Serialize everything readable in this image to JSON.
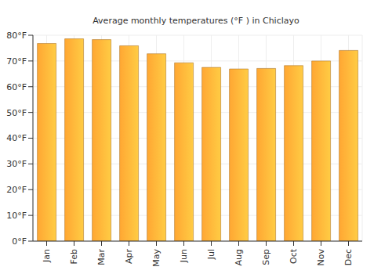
{
  "chart_data": {
    "type": "bar",
    "title": "Average monthly temperatures (°F ) in Chiclayo",
    "categories": [
      "Jan",
      "Feb",
      "Mar",
      "Apr",
      "May",
      "Jun",
      "Jul",
      "Aug",
      "Sep",
      "Oct",
      "Nov",
      "Dec"
    ],
    "values": [
      76.8,
      78.6,
      78.3,
      75.9,
      72.8,
      69.3,
      67.5,
      66.9,
      67.1,
      68.2,
      70,
      74.1
    ],
    "color": "#ffa733",
    "ylim": [
      0,
      80
    ],
    "yticks": [
      {
        "value": 0,
        "label": "0°F"
      },
      {
        "value": 10,
        "label": "10°F"
      },
      {
        "value": 20,
        "label": "20°F"
      },
      {
        "value": 30,
        "label": "30°F"
      },
      {
        "value": 40,
        "label": "40°F"
      },
      {
        "value": 50,
        "label": "50°F"
      },
      {
        "value": 60,
        "label": "60°F"
      },
      {
        "value": 70,
        "label": "70°F"
      },
      {
        "value": 80,
        "label": "80°F"
      }
    ],
    "grid": true
  }
}
